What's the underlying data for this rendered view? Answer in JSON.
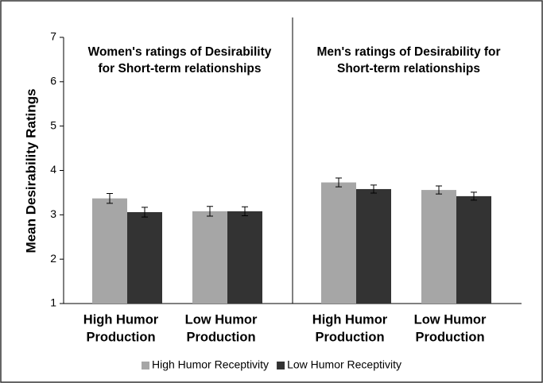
{
  "chart_data": {
    "type": "bar",
    "ylabel": "Mean Desirability Ratings",
    "ylim": [
      1,
      7
    ],
    "yticks": [
      1,
      2,
      3,
      4,
      5,
      6,
      7
    ],
    "panels": [
      {
        "title": [
          "Women's ratings of Desirability",
          "for Short-term relationships"
        ]
      },
      {
        "title": [
          "Men's ratings of Desirability for",
          "Short-term relationships"
        ]
      }
    ],
    "categories": [
      [
        "High Humor",
        "Production"
      ],
      [
        "Low Humor",
        "Production"
      ],
      [
        "High Humor",
        "Production"
      ],
      [
        "Low Humor",
        "Production"
      ]
    ],
    "series": [
      {
        "name": "High Humor Receptivity",
        "color": "#a6a6a6",
        "values": [
          3.37,
          3.08,
          3.73,
          3.56
        ],
        "errors": [
          0.11,
          0.11,
          0.1,
          0.09
        ]
      },
      {
        "name": "Low Humor Receptivity",
        "color": "#333333",
        "values": [
          3.06,
          3.08,
          3.58,
          3.42
        ],
        "errors": [
          0.11,
          0.1,
          0.09,
          0.09
        ]
      }
    ],
    "legend": "bottom"
  }
}
